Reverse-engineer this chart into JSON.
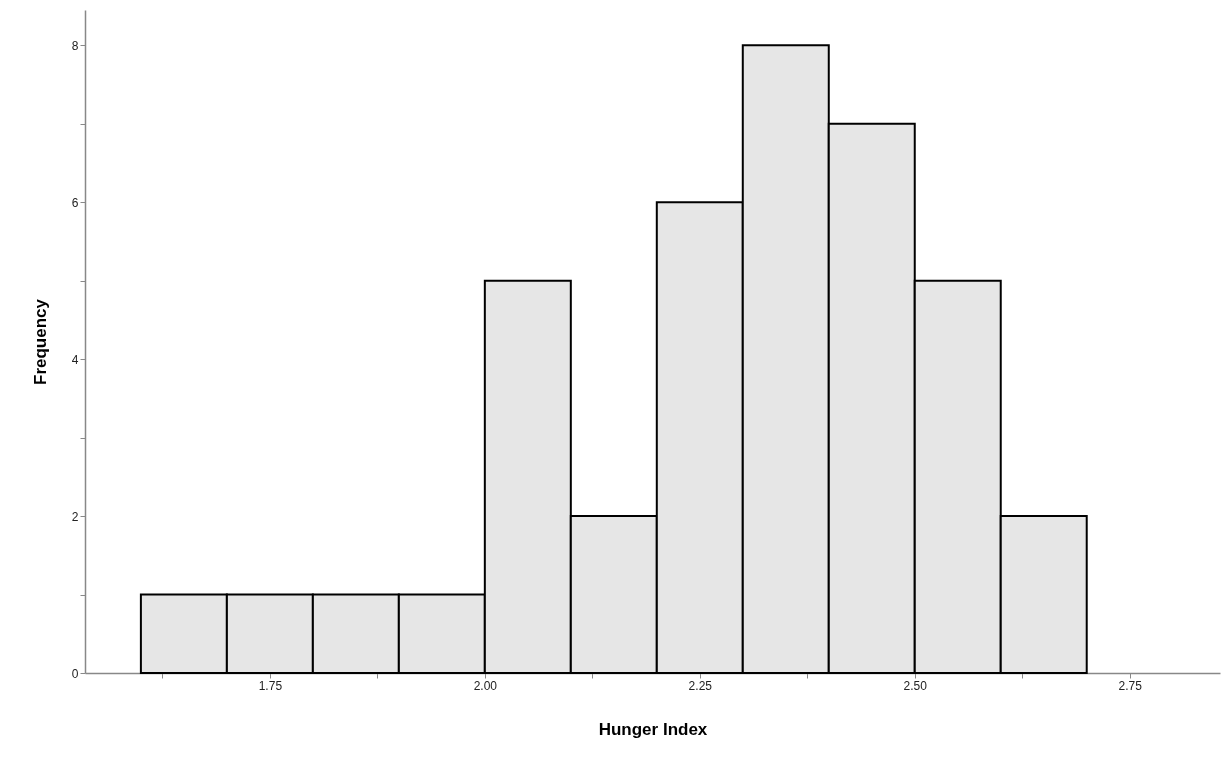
{
  "chart_data": {
    "type": "histogram",
    "xlabel": "Hunger Index",
    "ylabel": "Frequency",
    "bins": [
      1.6,
      1.7,
      1.8,
      1.9,
      2.0,
      2.1,
      2.2,
      2.3,
      2.4,
      2.5,
      2.6,
      2.7
    ],
    "values": [
      1,
      1,
      1,
      1,
      5,
      2,
      6,
      8,
      7,
      5,
      2
    ],
    "color": "#e6e6e6",
    "xlim": [
      1.535,
      2.855
    ],
    "xticks": [
      {
        "value": 1.625,
        "label": null
      },
      1.75,
      {
        "value": 1.875,
        "label": null
      },
      {
        "value": 2,
        "label": "2.00"
      },
      {
        "value": 2.125,
        "label": null
      },
      2.25,
      {
        "value": 2.375,
        "label": null
      },
      {
        "value": 2.5,
        "label": "2.50"
      },
      {
        "value": 2.625,
        "label": null
      },
      2.75
    ],
    "ylim": [
      0,
      8.45
    ],
    "yticks": [
      0,
      {
        "value": 1,
        "label": null
      },
      2,
      {
        "value": 3,
        "label": null
      },
      4,
      {
        "value": 5,
        "label": null
      },
      6,
      {
        "value": 7,
        "label": null
      },
      8
    ],
    "grid": false
  }
}
